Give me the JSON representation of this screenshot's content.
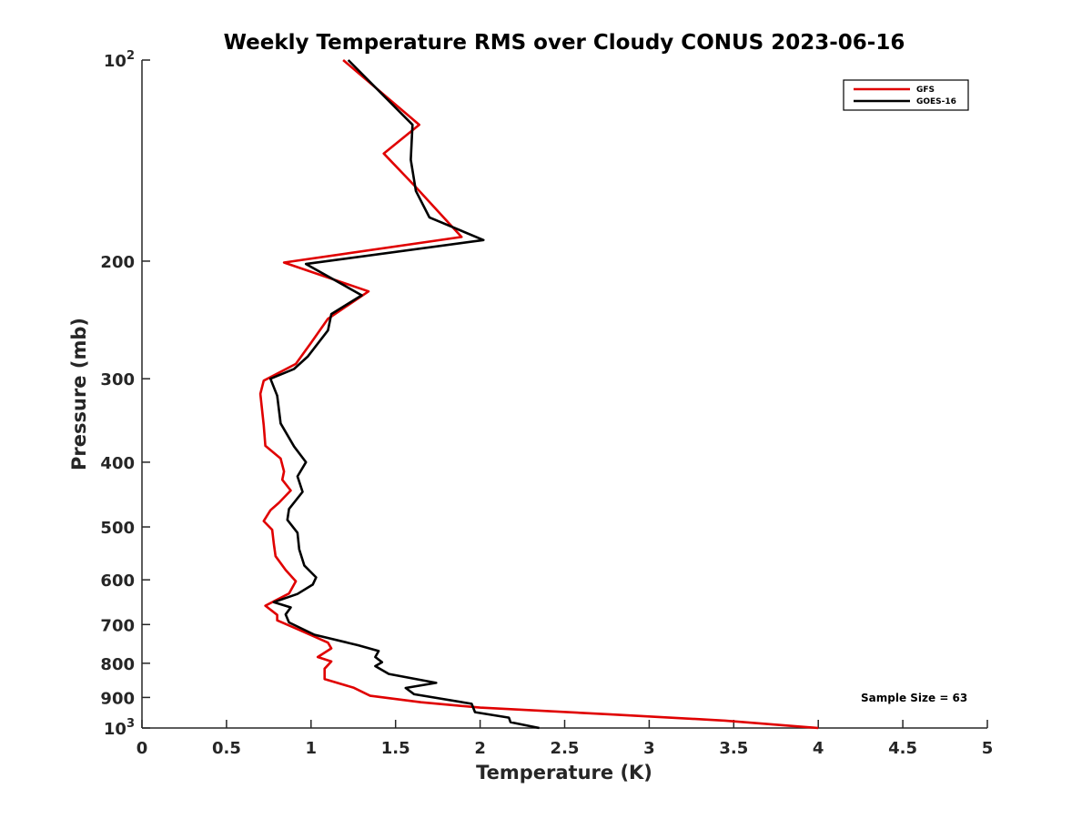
{
  "chart_data": {
    "type": "line",
    "title": "Weekly Temperature RMS over Cloudy CONUS 2023-06-16",
    "xlabel": "Temperature (K)",
    "ylabel": "Pressure (mb)",
    "xlim": [
      0,
      5
    ],
    "ylim": [
      100,
      1000
    ],
    "y_scale": "log",
    "y_reversed": true,
    "x_ticks": [
      "0",
      "0.5",
      "1",
      "1.5",
      "2",
      "2.5",
      "3",
      "3.5",
      "4",
      "4.5",
      "5"
    ],
    "y_ticks": [
      {
        "value": 100,
        "base": "10",
        "exp": "2"
      },
      {
        "value": 200,
        "label": "200"
      },
      {
        "value": 300,
        "label": "300"
      },
      {
        "value": 400,
        "label": "400"
      },
      {
        "value": 500,
        "label": "500"
      },
      {
        "value": 600,
        "label": "600"
      },
      {
        "value": 700,
        "label": "700"
      },
      {
        "value": 800,
        "label": "800"
      },
      {
        "value": 900,
        "label": "900"
      },
      {
        "value": 1000,
        "base": "10",
        "exp": "3"
      }
    ],
    "legend_position": "top-right",
    "annotation": "Sample Size = 63",
    "series": [
      {
        "name": "GFS",
        "color": "#e00000",
        "points": [
          [
            1.19,
            100
          ],
          [
            1.64,
            125
          ],
          [
            1.43,
            138
          ],
          [
            1.61,
            154
          ],
          [
            1.89,
            184
          ],
          [
            0.84,
            201
          ],
          [
            1.34,
            222
          ],
          [
            1.1,
            244
          ],
          [
            1.0,
            265
          ],
          [
            0.91,
            285
          ],
          [
            0.72,
            302
          ],
          [
            0.7,
            316
          ],
          [
            0.72,
            352
          ],
          [
            0.73,
            378
          ],
          [
            0.82,
            395
          ],
          [
            0.84,
            413
          ],
          [
            0.83,
            425
          ],
          [
            0.88,
            441
          ],
          [
            0.81,
            460
          ],
          [
            0.76,
            472
          ],
          [
            0.72,
            490
          ],
          [
            0.77,
            505
          ],
          [
            0.78,
            530
          ],
          [
            0.79,
            553
          ],
          [
            0.85,
            580
          ],
          [
            0.91,
            603
          ],
          [
            0.87,
            629
          ],
          [
            0.73,
            656
          ],
          [
            0.8,
            677
          ],
          [
            0.8,
            690
          ],
          [
            0.93,
            713
          ],
          [
            1.1,
            745
          ],
          [
            1.12,
            760
          ],
          [
            1.04,
            783
          ],
          [
            1.12,
            795
          ],
          [
            1.08,
            815
          ],
          [
            1.08,
            845
          ],
          [
            1.25,
            870
          ],
          [
            1.35,
            895
          ],
          [
            1.65,
            915
          ],
          [
            2.0,
            932
          ],
          [
            2.8,
            955
          ],
          [
            3.45,
            975
          ],
          [
            4.0,
            1000
          ]
        ]
      },
      {
        "name": "GOES-16",
        "color": "#000000",
        "points": [
          [
            1.22,
            100
          ],
          [
            1.6,
            125
          ],
          [
            1.59,
            141
          ],
          [
            1.62,
            157
          ],
          [
            1.7,
            172
          ],
          [
            2.02,
            186
          ],
          [
            0.97,
            202
          ],
          [
            1.3,
            225
          ],
          [
            1.12,
            240
          ],
          [
            1.1,
            254
          ],
          [
            0.98,
            278
          ],
          [
            0.9,
            290
          ],
          [
            0.76,
            300
          ],
          [
            0.8,
            318
          ],
          [
            0.82,
            350
          ],
          [
            0.9,
            379
          ],
          [
            0.97,
            400
          ],
          [
            0.92,
            420
          ],
          [
            0.95,
            443
          ],
          [
            0.87,
            470
          ],
          [
            0.86,
            488
          ],
          [
            0.92,
            510
          ],
          [
            0.93,
            540
          ],
          [
            0.96,
            571
          ],
          [
            1.03,
            595
          ],
          [
            1.01,
            610
          ],
          [
            0.92,
            630
          ],
          [
            0.78,
            648
          ],
          [
            0.88,
            660
          ],
          [
            0.85,
            676
          ],
          [
            0.87,
            695
          ],
          [
            1.02,
            725
          ],
          [
            1.28,
            752
          ],
          [
            1.4,
            767
          ],
          [
            1.38,
            783
          ],
          [
            1.42,
            797
          ],
          [
            1.38,
            808
          ],
          [
            1.46,
            830
          ],
          [
            1.74,
            856
          ],
          [
            1.56,
            871
          ],
          [
            1.61,
            890
          ],
          [
            1.95,
            920
          ],
          [
            1.97,
            947
          ],
          [
            2.17,
            965
          ],
          [
            2.18,
            980
          ],
          [
            2.35,
            1000
          ]
        ]
      }
    ]
  }
}
